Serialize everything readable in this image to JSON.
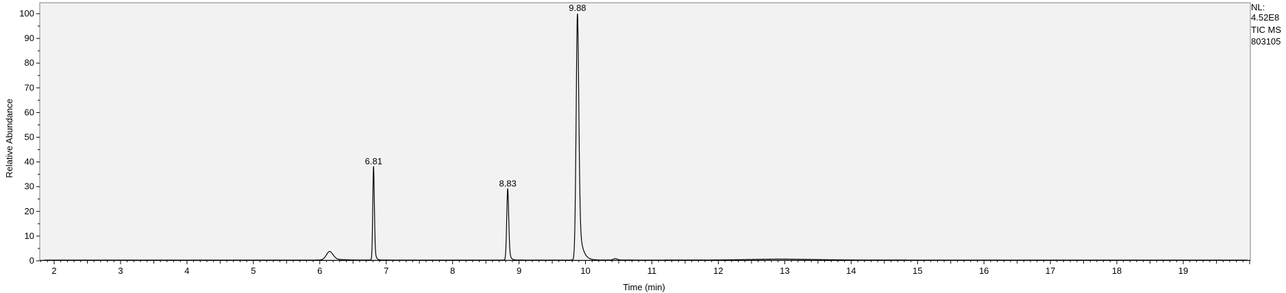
{
  "chart_data": {
    "type": "line",
    "title": "",
    "xlabel": "Time (min)",
    "ylabel": "Relative Abundance",
    "xlim": [
      1.8,
      20.0
    ],
    "ylim": [
      0,
      100
    ],
    "x_ticks": [
      2,
      3,
      4,
      5,
      6,
      7,
      8,
      9,
      10,
      11,
      12,
      13,
      14,
      15,
      16,
      17,
      18,
      19
    ],
    "y_ticks": [
      0,
      10,
      20,
      30,
      40,
      50,
      60,
      70,
      80,
      90,
      100
    ],
    "grid": false,
    "legend": "none",
    "colors": {
      "trace": "#000000",
      "plot_background": "#f2f2f2",
      "frame": "#808080"
    },
    "info": {
      "nl_label": "NL:",
      "nl_value": "4.52E8",
      "trace_label": "TIC  MS",
      "file_label": "803105"
    },
    "peaks": [
      {
        "rt": 6.15,
        "height": 3.5,
        "width": 0.05,
        "tail": 0.12,
        "label": ""
      },
      {
        "rt": 6.81,
        "height": 38,
        "width": 0.012,
        "tail": 0.02,
        "label": "6.81"
      },
      {
        "rt": 8.83,
        "height": 29,
        "width": 0.015,
        "tail": 0.025,
        "label": "8.83"
      },
      {
        "rt": 9.88,
        "height": 100,
        "width": 0.02,
        "tail": 0.05,
        "label": "9.88"
      },
      {
        "rt": 10.45,
        "height": 0.6,
        "width": 0.03,
        "tail": 0.05,
        "label": ""
      },
      {
        "rt": 13.0,
        "height": 0.4,
        "width": 0.5,
        "tail": 0.3,
        "label": ""
      }
    ],
    "baseline": 0.3
  }
}
